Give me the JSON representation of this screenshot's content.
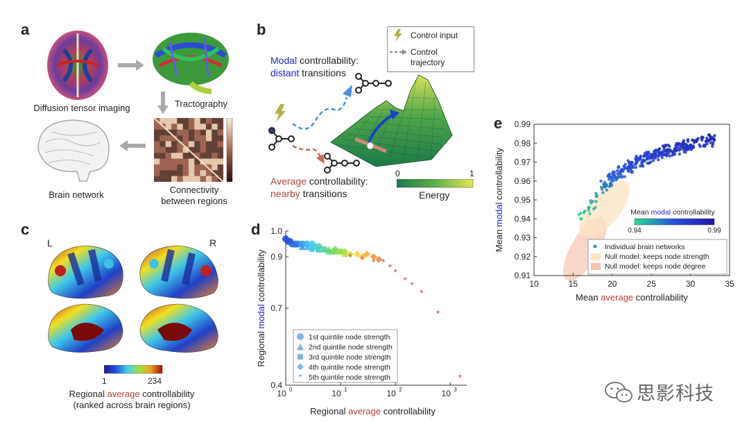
{
  "panel_a": {
    "label": "a",
    "dti_caption": "Diffusion tensor imaging",
    "tract_caption": "Tractography",
    "network_caption": "Brain network",
    "connectivity_caption_1": "Connectivity",
    "connectivity_caption_2": "between regions"
  },
  "panel_b": {
    "label": "b",
    "legend_control_input": "Control input",
    "legend_trajectory_1": "Control",
    "legend_trajectory_2": "trajectory",
    "modal_word": "Modal",
    "modal_rest": " controllability:",
    "distant_word": "distant",
    "distant_rest": " transitions",
    "average_word": "Average",
    "average_rest": " controllability:",
    "nearby_word": "nearby",
    "nearby_rest": " transitions",
    "energy_min": "0",
    "energy_max": "1",
    "energy_label": "Energy"
  },
  "panel_c": {
    "label": "c",
    "left": "L",
    "right": "R",
    "scale_min": "1",
    "scale_max": "234",
    "caption_prefix": "Regional ",
    "caption_colored": "average",
    "caption_suffix": " controllability",
    "caption_line2": "(ranked across brain regions)"
  },
  "panel_d": {
    "label": "d",
    "ylabel_prefix": "Regional ",
    "ylabel_colored": "modal",
    "ylabel_suffix": " controllability",
    "xlabel_prefix": "Regional ",
    "xlabel_colored": "average",
    "xlabel_suffix": " controllability",
    "y_ticks": [
      "1.0",
      "0.9",
      "0.7",
      "0.4"
    ],
    "x_ticks": [
      "10",
      "10",
      "10",
      "10"
    ],
    "x_tick_exps": [
      "0",
      "1",
      "2",
      "3"
    ],
    "legend": [
      {
        "marker": "circle",
        "label": "1st quintile node strength"
      },
      {
        "marker": "triangle",
        "label": "2nd quintile node strength"
      },
      {
        "marker": "square",
        "label": "3rd quintile node strength"
      },
      {
        "marker": "diamond",
        "label": "4th quintile node strength"
      },
      {
        "marker": "star",
        "label": "5th quintile node strength"
      }
    ]
  },
  "panel_e": {
    "label": "e",
    "ylabel_prefix": "Mean ",
    "ylabel_colored": "modal",
    "ylabel_suffix": " controllability",
    "xlabel_prefix": "Mean ",
    "xlabel_colored": "average",
    "xlabel_suffix": " controllability",
    "y_ticks": [
      "0.99",
      "0.98",
      "0.97",
      "0.96",
      "0.95",
      "0.94",
      "0.93",
      "0.92",
      "0.91"
    ],
    "x_ticks": [
      "10",
      "15",
      "20",
      "25",
      "30",
      "35"
    ],
    "cbar_title_prefix": "Mean ",
    "cbar_title_colored": "modal",
    "cbar_title_suffix": " controllability",
    "cbar_min": "0.94",
    "cbar_max": "0.99",
    "legend": [
      {
        "label": "Individual brain networks"
      },
      {
        "label": "Null model: keeps node strength"
      },
      {
        "label": "Null model: keeps node degree"
      }
    ]
  },
  "watermark": "思影科技",
  "chart_data": [
    {
      "type": "scatter",
      "title": "",
      "xlabel": "Regional average controllability",
      "ylabel": "Regional modal controllability",
      "xscale": "log",
      "xlim": [
        1,
        2000
      ],
      "ylim": [
        0.4,
        1.0
      ],
      "series": [
        {
          "name": "1st quintile node strength",
          "x": [
            1.0,
            1.1,
            1.2,
            1.3,
            1.5,
            1.7,
            2.0,
            2.4,
            3.0,
            4.0
          ],
          "y": [
            0.97,
            0.96,
            0.96,
            0.95,
            0.95,
            0.95,
            0.95,
            0.95,
            0.95,
            0.94
          ]
        },
        {
          "name": "2nd quintile node strength",
          "x": [
            1.5,
            2.0,
            2.5,
            3.0,
            3.5,
            4.0,
            5.0,
            6.0
          ],
          "y": [
            0.95,
            0.94,
            0.94,
            0.94,
            0.94,
            0.93,
            0.93,
            0.93
          ]
        },
        {
          "name": "3rd quintile node strength",
          "x": [
            3.0,
            4.0,
            5.0,
            6.0,
            7.0,
            8.0,
            10.0,
            12.0
          ],
          "y": [
            0.93,
            0.93,
            0.93,
            0.92,
            0.92,
            0.92,
            0.92,
            0.91
          ]
        },
        {
          "name": "4th quintile node strength",
          "x": [
            8.0,
            10.0,
            12.0,
            15.0,
            20.0,
            25.0,
            30.0,
            40.0,
            50.0
          ],
          "y": [
            0.93,
            0.92,
            0.92,
            0.91,
            0.91,
            0.9,
            0.91,
            0.9,
            0.89
          ]
        },
        {
          "name": "5th quintile node strength",
          "x": [
            15,
            25,
            40,
            60,
            80,
            100,
            150,
            200,
            300,
            600,
            1500
          ],
          "y": [
            0.9,
            0.89,
            0.88,
            0.88,
            0.86,
            0.84,
            0.81,
            0.79,
            0.76,
            0.68,
            0.43
          ]
        }
      ]
    },
    {
      "type": "scatter",
      "title": "",
      "xlabel": "Mean average controllability",
      "ylabel": "Mean modal controllability",
      "xlim": [
        10,
        35
      ],
      "ylim": [
        0.91,
        0.99
      ],
      "series": [
        {
          "name": "Individual brain networks",
          "x": [
            16,
            17,
            18,
            19,
            20,
            21,
            22,
            23,
            24,
            25,
            26,
            27,
            28,
            29,
            30,
            32,
            33
          ],
          "y": [
            0.94,
            0.946,
            0.952,
            0.957,
            0.961,
            0.964,
            0.967,
            0.969,
            0.971,
            0.973,
            0.975,
            0.976,
            0.977,
            0.978,
            0.979,
            0.981,
            0.982
          ]
        }
      ]
    }
  ]
}
